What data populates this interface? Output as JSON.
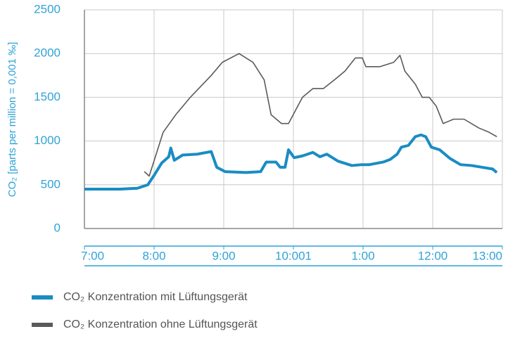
{
  "chart_data": {
    "type": "line",
    "y_label": "CO₂ [parts per million = 0,001 ‰]",
    "xlim": [
      7,
      13
    ],
    "ylim": [
      0,
      2500
    ],
    "xticks": [
      {
        "value": 7,
        "label": "7:00"
      },
      {
        "value": 8,
        "label": "8:00"
      },
      {
        "value": 9,
        "label": "9:00"
      },
      {
        "value": 10,
        "label": "10:001"
      },
      {
        "value": 11,
        "label": "1:00"
      },
      {
        "value": 12,
        "label": "12:00"
      },
      {
        "value": 13,
        "label": "13:00"
      }
    ],
    "yticks": [
      0,
      500,
      1000,
      1500,
      2000,
      2500
    ],
    "grid": true,
    "legend": "bottom-left",
    "series": [
      {
        "name": "CO₂ Konzentration mit Lüftungsgerät",
        "color": "#1a8cc4",
        "x": [
          7.0,
          7.51,
          7.76,
          7.91,
          8.01,
          8.11,
          8.21,
          8.24,
          8.29,
          8.41,
          8.62,
          8.82,
          8.9,
          9.02,
          9.32,
          9.53,
          9.61,
          9.75,
          9.81,
          9.88,
          9.93,
          10.01,
          10.13,
          10.28,
          10.38,
          10.48,
          10.64,
          10.84,
          10.98,
          11.09,
          11.29,
          11.39,
          11.49,
          11.55,
          11.65,
          11.75,
          11.83,
          11.9,
          11.98,
          12.1,
          12.25,
          12.4,
          12.56,
          12.71,
          12.86,
          12.92
        ],
        "values": [
          450,
          450,
          460,
          500,
          620,
          750,
          820,
          920,
          780,
          840,
          850,
          880,
          700,
          650,
          640,
          650,
          760,
          760,
          700,
          700,
          900,
          810,
          830,
          870,
          820,
          850,
          770,
          720,
          730,
          730,
          760,
          790,
          850,
          930,
          950,
          1050,
          1070,
          1050,
          930,
          900,
          800,
          730,
          720,
          700,
          680,
          640
        ]
      },
      {
        "name": "CO₂ Konzentration ohne Lüftungsgerät",
        "color": "#5a5a5a",
        "x": [
          7.86,
          7.93,
          8.01,
          8.13,
          8.31,
          8.52,
          8.82,
          8.98,
          9.22,
          9.42,
          9.58,
          9.68,
          9.83,
          9.93,
          10.03,
          10.13,
          10.28,
          10.43,
          10.59,
          10.74,
          10.89,
          10.99,
          11.04,
          11.24,
          11.44,
          11.53,
          11.6,
          11.75,
          11.85,
          11.95,
          12.05,
          12.15,
          12.3,
          12.45,
          12.66,
          12.81,
          12.92
        ],
        "values": [
          650,
          600,
          800,
          1100,
          1300,
          1500,
          1750,
          1900,
          2000,
          1900,
          1700,
          1300,
          1200,
          1200,
          1350,
          1500,
          1600,
          1600,
          1700,
          1800,
          1950,
          1950,
          1850,
          1850,
          1900,
          1980,
          1800,
          1650,
          1500,
          1500,
          1400,
          1200,
          1250,
          1250,
          1150,
          1100,
          1050
        ]
      }
    ]
  }
}
